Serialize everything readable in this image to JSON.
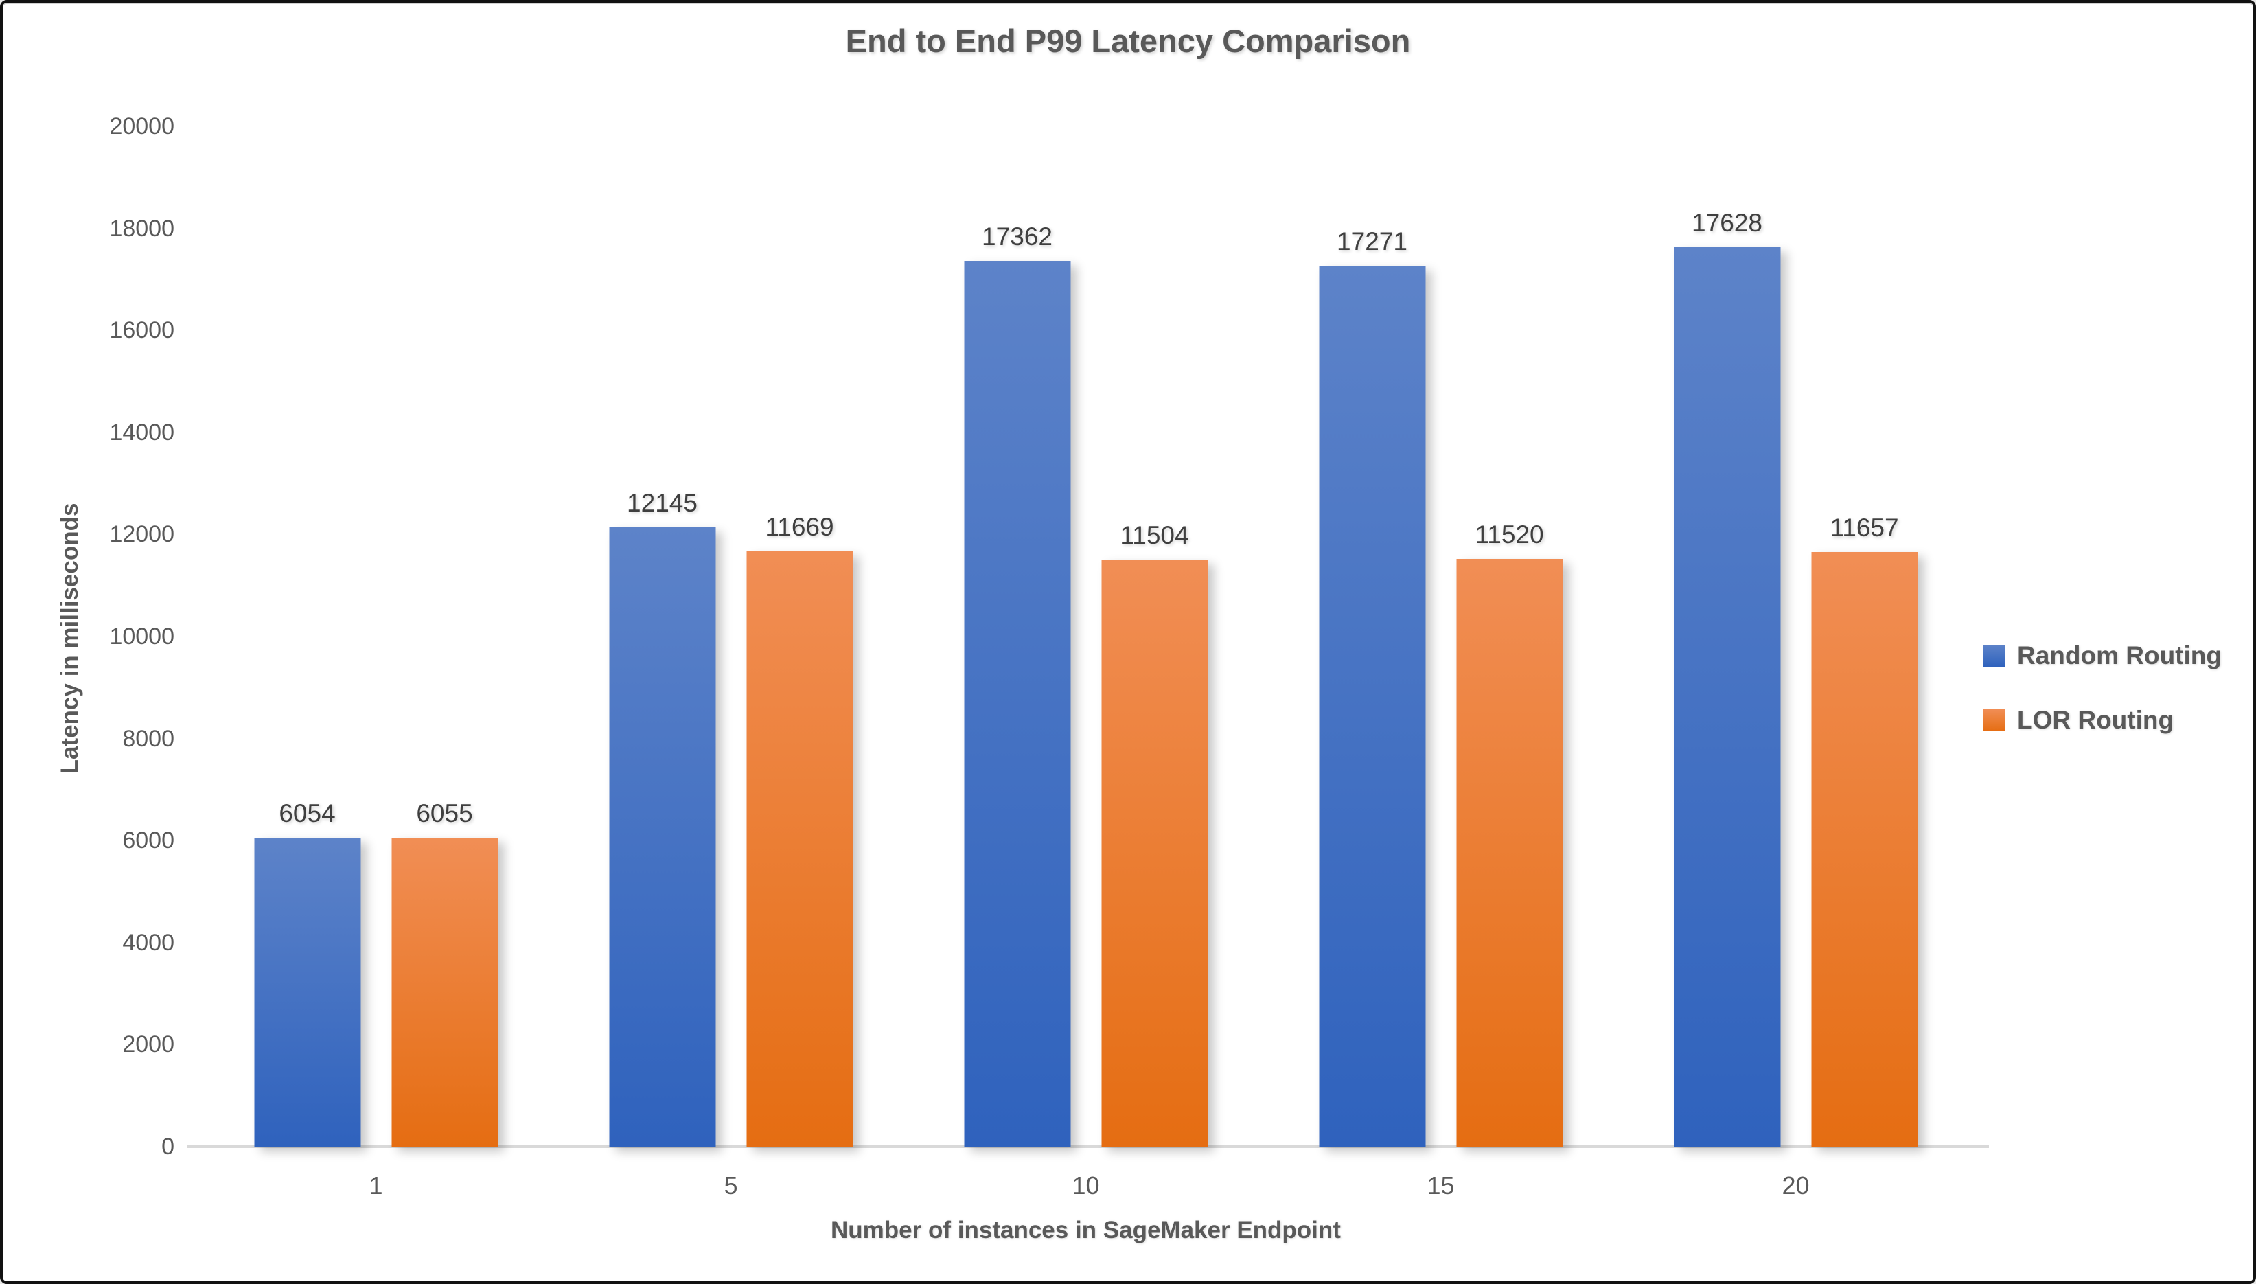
{
  "chart_data": {
    "type": "bar",
    "title": "End to End P99 Latency Comparison",
    "xlabel": "Number of instances in SageMaker Endpoint",
    "ylabel": "Latency in milliseconds",
    "categories": [
      "1",
      "5",
      "10",
      "15",
      "20"
    ],
    "series": [
      {
        "name": "Random Routing",
        "values": [
          6054,
          12145,
          17362,
          17271,
          17628
        ],
        "color_top": "#5d83c9",
        "color_bottom": "#2f62bd"
      },
      {
        "name": "LOR Routing",
        "values": [
          6055,
          11669,
          11504,
          11520,
          11657
        ],
        "color_top": "#f18e55",
        "color_bottom": "#e56d12"
      }
    ],
    "ylim": [
      0,
      20000
    ],
    "ytick_step": 2000,
    "ytick_labels": [
      "0",
      "2000",
      "4000",
      "6000",
      "8000",
      "10000",
      "12000",
      "14000",
      "16000",
      "18000",
      "20000"
    ],
    "grid": false,
    "legend_position": "right",
    "axis_line_color": "#d9d9d9",
    "text_color": "#595959",
    "data_label_color": "#3f3f3f"
  }
}
